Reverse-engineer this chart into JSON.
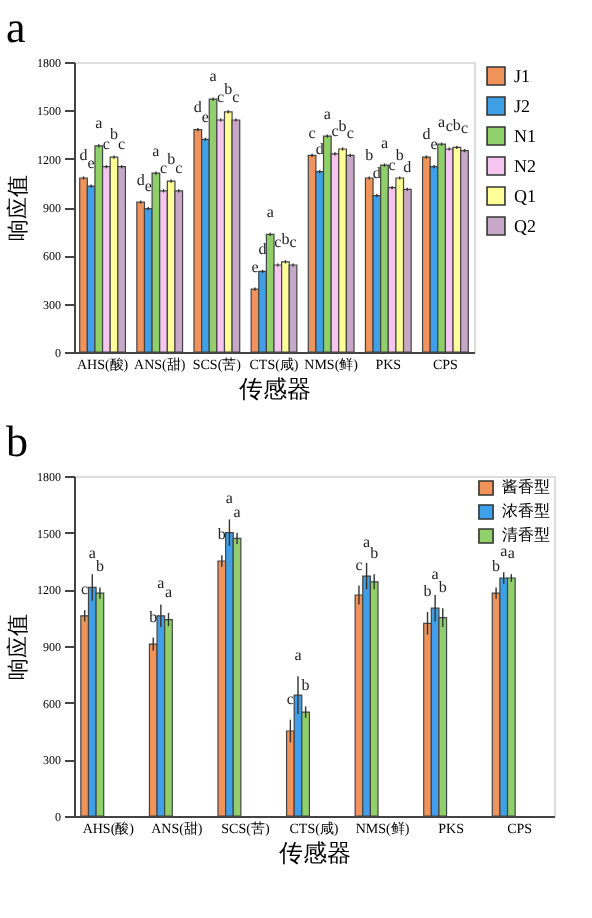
{
  "chart_data": [
    {
      "type": "bar",
      "title": "a",
      "xlabel": "传感器",
      "ylabel": "响应值",
      "categories": [
        "AHS(酸)",
        "ANS(甜)",
        "SCS(苦)",
        "CTS(咸)",
        "NMS(鲜)",
        "PKS",
        "CPS"
      ],
      "ylim": [
        0,
        1800
      ],
      "yticks": [
        0,
        300,
        600,
        900,
        1200,
        1500,
        1800
      ],
      "legend": "right",
      "grid": false,
      "series": [
        {
          "name": "J1",
          "color": "#f0945c",
          "values": [
            1080,
            930,
            1380,
            390,
            1220,
            1080,
            1210
          ],
          "errors": [
            10,
            10,
            10,
            10,
            10,
            10,
            10
          ],
          "value_labels": [
            "d",
            "d",
            "d",
            "e",
            "c",
            "b",
            "d"
          ]
        },
        {
          "name": "J2",
          "color": "#3fa0e8",
          "values": [
            1030,
            890,
            1320,
            500,
            1120,
            970,
            1150
          ],
          "errors": [
            10,
            10,
            10,
            10,
            10,
            10,
            10
          ],
          "value_labels": [
            "e",
            "e",
            "e",
            "d",
            "d",
            "d",
            "e"
          ]
        },
        {
          "name": "N1",
          "color": "#8fd06a",
          "values": [
            1280,
            1110,
            1570,
            730,
            1340,
            1160,
            1290
          ],
          "errors": [
            10,
            10,
            10,
            10,
            10,
            10,
            10
          ],
          "value_labels": [
            "a",
            "a",
            "a",
            "a",
            "a",
            "a",
            "a"
          ]
        },
        {
          "name": "N2",
          "color": "#f7c6f0",
          "values": [
            1150,
            1000,
            1440,
            540,
            1230,
            1020,
            1260
          ],
          "errors": [
            10,
            10,
            10,
            10,
            10,
            10,
            10
          ],
          "value_labels": [
            "c",
            "c",
            "c",
            "c",
            "c",
            "c",
            "c"
          ]
        },
        {
          "name": "Q1",
          "color": "#ffff99",
          "values": [
            1210,
            1060,
            1490,
            560,
            1260,
            1080,
            1270
          ],
          "errors": [
            10,
            10,
            10,
            10,
            10,
            10,
            10
          ],
          "value_labels": [
            "b",
            "b",
            "b",
            "b",
            "b",
            "b",
            "b"
          ]
        },
        {
          "name": "Q2",
          "color": "#c8a8c8",
          "values": [
            1150,
            1000,
            1440,
            540,
            1220,
            1010,
            1250
          ],
          "errors": [
            10,
            10,
            10,
            10,
            10,
            10,
            10
          ],
          "value_labels": [
            "c",
            "c",
            "c",
            "c",
            "c",
            "d",
            "c"
          ]
        }
      ]
    },
    {
      "type": "bar",
      "title": "b",
      "xlabel": "传感器",
      "ylabel": "响应值",
      "categories": [
        "AHS(酸)",
        "ANS(甜)",
        "SCS(苦)",
        "CTS(咸)",
        "NMS(鲜)",
        "PKS",
        "CPS"
      ],
      "ylim": [
        0,
        1800
      ],
      "yticks": [
        0,
        300,
        600,
        900,
        1200,
        1500,
        1800
      ],
      "legend": "top right",
      "grid": false,
      "series": [
        {
          "name": "酱香型",
          "color": "#f0945c",
          "values": [
            1060,
            910,
            1350,
            450,
            1170,
            1020,
            1180
          ],
          "errors": [
            30,
            35,
            30,
            60,
            50,
            60,
            30
          ],
          "value_labels": [
            "c",
            "b",
            "b",
            "c",
            "c",
            "b",
            "b"
          ]
        },
        {
          "name": "浓香型",
          "color": "#3fa0e8",
          "values": [
            1210,
            1060,
            1500,
            640,
            1270,
            1100,
            1260
          ],
          "errors": [
            70,
            60,
            70,
            100,
            70,
            70,
            30
          ],
          "value_labels": [
            "a",
            "a",
            "a",
            "a",
            "a",
            "a",
            "a"
          ]
        },
        {
          "name": "清香型",
          "color": "#8fd06a",
          "values": [
            1180,
            1040,
            1470,
            550,
            1240,
            1050,
            1260
          ],
          "errors": [
            30,
            35,
            30,
            30,
            40,
            50,
            20
          ],
          "value_labels": [
            "b",
            "a",
            "a",
            "b",
            "b",
            "b",
            "a"
          ]
        }
      ]
    }
  ]
}
